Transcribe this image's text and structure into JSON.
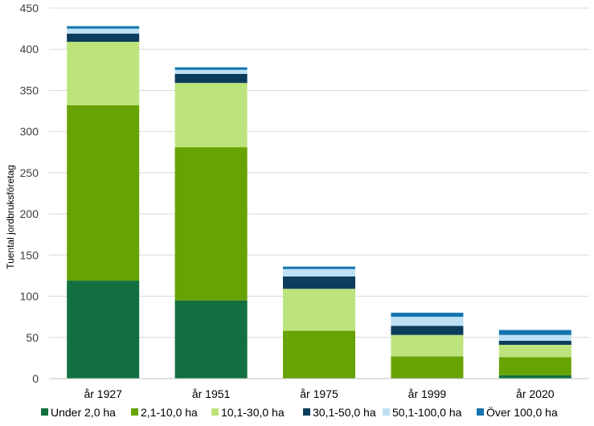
{
  "chart_data": {
    "type": "bar",
    "stacked": true,
    "title": "",
    "xlabel": "",
    "ylabel": "Tuental jordbruksföretag",
    "ylim": [
      0,
      450
    ],
    "yticks": [
      0,
      50,
      100,
      150,
      200,
      250,
      300,
      350,
      400,
      450
    ],
    "grid": true,
    "legend_position": "bottom",
    "categories": [
      "år 1927",
      "år 1951",
      "år 1975",
      "år 1999",
      "år 2020"
    ],
    "series": [
      {
        "name": "Under 2,0 ha",
        "color": "#127040",
        "values": [
          119,
          95,
          0,
          0,
          4
        ]
      },
      {
        "name": "2,1-10,0 ha",
        "color": "#66a303",
        "values": [
          213,
          186,
          58,
          27,
          22
        ]
      },
      {
        "name": "10,1-30,0 ha",
        "color": "#bde37c",
        "values": [
          77,
          78,
          51,
          26,
          15
        ]
      },
      {
        "name": "30,1-50,0 ha",
        "color": "#0d3d5c",
        "values": [
          10,
          11,
          15,
          11,
          5
        ]
      },
      {
        "name": "50,1-100,0 ha",
        "color": "#bde0f5",
        "values": [
          6,
          5,
          9,
          11,
          7
        ]
      },
      {
        "name": "Över 100,0 ha",
        "color": "#1574b0",
        "values": [
          3,
          3,
          3,
          5,
          6
        ]
      }
    ]
  }
}
